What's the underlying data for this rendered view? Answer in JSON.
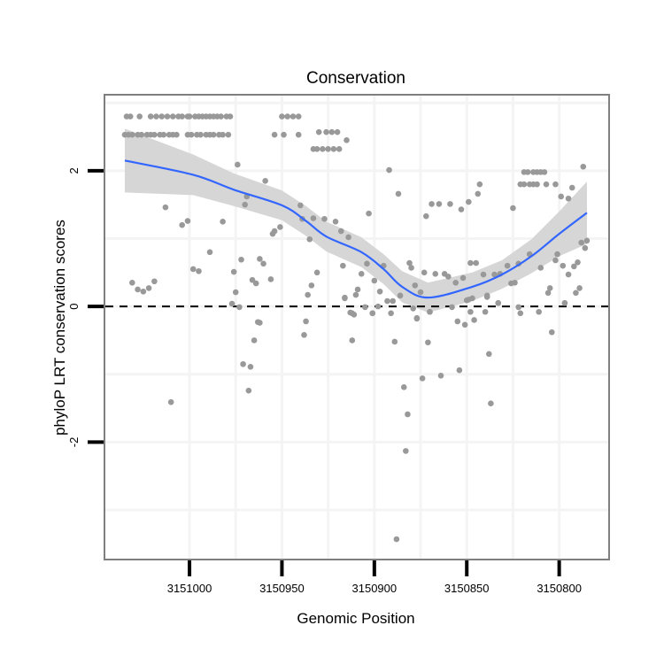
{
  "chart_data": {
    "type": "scatter",
    "title": "Conservation",
    "xlabel": "Genomic Position",
    "ylabel": "phyloP LRT conservation scores",
    "x_reversed": true,
    "xlim": [
      3151046,
      3150773
    ],
    "ylim": [
      -3.73,
      3.12
    ],
    "x_ticks": [
      3151000,
      3150950,
      3150900,
      3150850,
      3150800
    ],
    "x_tick_labels": [
      "3151000",
      "3150950",
      "3150900",
      "3150850",
      "3150800"
    ],
    "y_ticks": [
      2,
      0,
      -2
    ],
    "y_tick_labels": [
      "2",
      "0",
      "-2"
    ],
    "x_minor_grid": [
      3150975,
      3150925,
      3150875,
      3150825
    ],
    "y_minor_grid": [
      3,
      1,
      -1,
      -3
    ],
    "grid": true,
    "reference_line": {
      "y": 0,
      "style": "dashed",
      "color": "#000000"
    },
    "colors": {
      "points": "#999999",
      "smooth": "#3366FF",
      "ribbon": "#D6D6D6",
      "border": "#7F7F7F"
    },
    "points": [
      [
        3151034,
        2.8
      ],
      [
        3151032,
        2.8
      ],
      [
        3151027,
        2.8
      ],
      [
        3151021,
        2.8
      ],
      [
        3151018,
        2.8
      ],
      [
        3151015,
        2.8
      ],
      [
        3151012,
        2.8
      ],
      [
        3151009,
        2.8
      ],
      [
        3151006,
        2.8
      ],
      [
        3151004,
        2.8
      ],
      [
        3151001,
        2.8
      ],
      [
        3151000,
        2.8
      ],
      [
        3150997,
        2.8
      ],
      [
        3150995,
        2.8
      ],
      [
        3150993,
        2.8
      ],
      [
        3150991,
        2.8
      ],
      [
        3150989,
        2.8
      ],
      [
        3150987,
        2.8
      ],
      [
        3150985,
        2.8
      ],
      [
        3150983,
        2.8
      ],
      [
        3150980,
        2.8
      ],
      [
        3150978,
        2.8
      ],
      [
        3150950,
        2.8
      ],
      [
        3150947,
        2.8
      ],
      [
        3150944,
        2.8
      ],
      [
        3150941,
        2.8
      ],
      [
        3151035,
        2.53
      ],
      [
        3151033,
        2.53
      ],
      [
        3151031,
        2.53
      ],
      [
        3151028,
        2.53
      ],
      [
        3151026,
        2.53
      ],
      [
        3151023,
        2.53
      ],
      [
        3151021,
        2.53
      ],
      [
        3151019,
        2.53
      ],
      [
        3151016,
        2.53
      ],
      [
        3151014,
        2.53
      ],
      [
        3151011,
        2.53
      ],
      [
        3151009,
        2.53
      ],
      [
        3151007,
        2.53
      ],
      [
        3151001,
        2.53
      ],
      [
        3150999,
        2.53
      ],
      [
        3150996,
        2.53
      ],
      [
        3150994,
        2.53
      ],
      [
        3150991,
        2.53
      ],
      [
        3150989,
        2.53
      ],
      [
        3150987,
        2.53
      ],
      [
        3150984,
        2.53
      ],
      [
        3150982,
        2.53
      ],
      [
        3150979,
        2.53
      ],
      [
        3150954,
        2.53
      ],
      [
        3150949,
        2.53
      ],
      [
        3150941,
        2.53
      ],
      [
        3150930,
        2.57
      ],
      [
        3150926,
        2.57
      ],
      [
        3150923,
        2.57
      ],
      [
        3150920,
        2.57
      ],
      [
        3150915,
        2.45
      ],
      [
        3150933,
        2.32
      ],
      [
        3150931,
        2.32
      ],
      [
        3150928,
        2.32
      ],
      [
        3150925,
        2.32
      ],
      [
        3150922,
        2.32
      ],
      [
        3150919,
        2.32
      ],
      [
        3150974,
        2.09
      ],
      [
        3150959,
        1.85
      ],
      [
        3150969,
        1.62
      ],
      [
        3150970,
        1.5
      ],
      [
        3151013,
        1.46
      ],
      [
        3151001,
        1.26
      ],
      [
        3151004,
        1.2
      ],
      [
        3150982,
        1.25
      ],
      [
        3150940,
        1.49
      ],
      [
        3150939,
        1.29
      ],
      [
        3150933,
        1.3
      ],
      [
        3150927,
        1.29
      ],
      [
        3150921,
        1.25
      ],
      [
        3150918,
        1.11
      ],
      [
        3150914,
        1.02
      ],
      [
        3150935,
        0.99
      ],
      [
        3150951,
        1.17
      ],
      [
        3150954,
        1.11
      ],
      [
        3150955,
        1.07
      ],
      [
        3150989,
        0.8
      ],
      [
        3150998,
        0.55
      ],
      [
        3150995,
        0.52
      ],
      [
        3150972,
        0.69
      ],
      [
        3150976,
        0.51
      ],
      [
        3150962,
        0.7
      ],
      [
        3150960,
        0.63
      ],
      [
        3150966,
        0.39
      ],
      [
        3150964,
        0.34
      ],
      [
        3150956,
        0.4
      ],
      [
        3150931,
        0.5
      ],
      [
        3150934,
        0.31
      ],
      [
        3150936,
        0.17
      ],
      [
        3150917,
        0.6
      ],
      [
        3150916,
        0.13
      ],
      [
        3150909,
        0.25
      ],
      [
        3151031,
        0.35
      ],
      [
        3151028,
        0.25
      ],
      [
        3151025,
        0.22
      ],
      [
        3151022,
        0.27
      ],
      [
        3151019,
        0.37
      ],
      [
        3150975,
        0.21
      ],
      [
        3150977,
        0.04
      ],
      [
        3150973,
        -0.01
      ],
      [
        3150912,
        -0.1
      ],
      [
        3150962,
        -0.24
      ],
      [
        3150963,
        -0.23
      ],
      [
        3150937,
        -0.22
      ],
      [
        3150938,
        -0.42
      ],
      [
        3150965,
        -0.5
      ],
      [
        3150971,
        -0.85
      ],
      [
        3150967,
        -0.89
      ],
      [
        3150968,
        -1.24
      ],
      [
        3151010,
        -1.41
      ],
      [
        3150916,
        0.12
      ],
      [
        3150910,
        0.17
      ],
      [
        3150913,
        -0.09
      ],
      [
        3150911,
        -0.12
      ],
      [
        3150905,
        -0.01
      ],
      [
        3150901,
        -0.1
      ],
      [
        3150898,
        0.0
      ],
      [
        3150893,
        0.08
      ],
      [
        3150891,
        -0.1
      ],
      [
        3150912,
        -0.5
      ],
      [
        3150889,
        -0.52
      ],
      [
        3150884,
        -1.19
      ],
      [
        3150882,
        -1.59
      ],
      [
        3150883,
        -2.13
      ],
      [
        3150888,
        -3.43
      ],
      [
        3150877,
        -0.18
      ],
      [
        3150874,
        -1.06
      ],
      [
        3150871,
        -0.53
      ],
      [
        3150864,
        -1.02
      ],
      [
        3150854,
        -0.94
      ],
      [
        3150870,
        -0.08
      ],
      [
        3150858,
        -0.01
      ],
      [
        3150855,
        -0.22
      ],
      [
        3150851,
        -0.27
      ],
      [
        3150846,
        -0.2
      ],
      [
        3150840,
        -0.08
      ],
      [
        3150838,
        -0.7
      ],
      [
        3150837,
        -1.43
      ],
      [
        3150833,
        0.05
      ],
      [
        3150822,
        -0.01
      ],
      [
        3150821,
        -0.1
      ],
      [
        3150811,
        -0.08
      ],
      [
        3150804,
        -0.38
      ],
      [
        3150797,
        0.05
      ],
      [
        3150850,
        0.09
      ],
      [
        3150847,
        0.12
      ],
      [
        3150839,
        0.16
      ],
      [
        3150879,
        -0.03
      ],
      [
        3150892,
        2.01
      ],
      [
        3150887,
        1.66
      ],
      [
        3150903,
        1.37
      ],
      [
        3150869,
        1.51
      ],
      [
        3150865,
        1.51
      ],
      [
        3150859,
        1.51
      ],
      [
        3150872,
        1.33
      ],
      [
        3150853,
        1.43
      ],
      [
        3150849,
        1.54
      ],
      [
        3150844,
        1.66
      ],
      [
        3150843,
        1.8
      ],
      [
        3150825,
        1.45
      ],
      [
        3150819,
        1.98
      ],
      [
        3150817,
        1.98
      ],
      [
        3150814,
        1.98
      ],
      [
        3150812,
        1.98
      ],
      [
        3150810,
        1.98
      ],
      [
        3150808,
        1.98
      ],
      [
        3150821,
        1.8
      ],
      [
        3150819,
        1.8
      ],
      [
        3150816,
        1.8
      ],
      [
        3150814,
        1.8
      ],
      [
        3150812,
        1.8
      ],
      [
        3150807,
        1.8
      ],
      [
        3150802,
        1.8
      ],
      [
        3150793,
        1.75
      ],
      [
        3150799,
        1.62
      ],
      [
        3150795,
        1.59
      ],
      [
        3150787,
        2.06
      ],
      [
        3150788,
        0.94
      ],
      [
        3150785,
        0.97
      ],
      [
        3150786,
        0.86
      ],
      [
        3150904,
        0.63
      ],
      [
        3150907,
        0.48
      ],
      [
        3150895,
        0.6
      ],
      [
        3150900,
        0.38
      ],
      [
        3150897,
        0.22
      ],
      [
        3150881,
        0.64
      ],
      [
        3150880,
        0.57
      ],
      [
        3150873,
        0.5
      ],
      [
        3150867,
        0.48
      ],
      [
        3150862,
        0.48
      ],
      [
        3150860,
        0.44
      ],
      [
        3150878,
        0.31
      ],
      [
        3150875,
        0.21
      ],
      [
        3150856,
        0.35
      ],
      [
        3150852,
        0.42
      ],
      [
        3150848,
        0.64
      ],
      [
        3150845,
        0.64
      ],
      [
        3150841,
        0.47
      ],
      [
        3150835,
        0.47
      ],
      [
        3150832,
        0.48
      ],
      [
        3150828,
        0.6
      ],
      [
        3150826,
        0.34
      ],
      [
        3150824,
        0.35
      ],
      [
        3150822,
        0.63
      ],
      [
        3150816,
        0.77
      ],
      [
        3150810,
        0.57
      ],
      [
        3150801,
        0.77
      ],
      [
        3150802,
        0.68
      ],
      [
        3150798,
        0.6
      ],
      [
        3150795,
        0.47
      ],
      [
        3150792,
        0.59
      ],
      [
        3150790,
        0.65
      ],
      [
        3150805,
        0.27
      ],
      [
        3150806,
        0.2
      ],
      [
        3150791,
        0.2
      ],
      [
        3150789,
        0.27
      ],
      [
        3150886,
        0.16
      ],
      [
        3150890,
        0.08
      ],
      [
        3150849,
        0.1
      ],
      [
        3150839,
        0.14
      ],
      [
        3150833,
        0.05
      ],
      [
        3150797,
        0.05
      ],
      [
        3150901,
        -0.1
      ],
      [
        3150877,
        -0.17
      ],
      [
        3150870,
        -0.08
      ],
      [
        3150848,
        -0.08
      ]
    ],
    "smooth": {
      "method": "loess",
      "x": [
        3151035,
        3150998,
        3150976,
        3150950,
        3150937,
        3150926,
        3150907,
        3150895,
        3150885,
        3150871,
        3150847,
        3150831,
        3150815,
        3150800,
        3150785
      ],
      "y": [
        2.15,
        1.94,
        1.72,
        1.49,
        1.26,
        1.03,
        0.8,
        0.55,
        0.29,
        0.13,
        0.29,
        0.47,
        0.74,
        1.07,
        1.38
      ],
      "se": [
        0.47,
        0.3,
        0.24,
        0.22,
        0.22,
        0.22,
        0.22,
        0.22,
        0.23,
        0.22,
        0.21,
        0.21,
        0.25,
        0.33,
        0.46
      ]
    }
  }
}
